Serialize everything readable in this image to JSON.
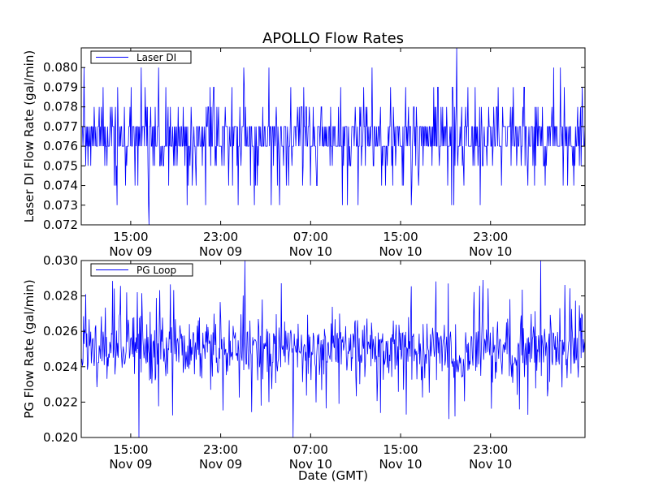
{
  "title": "APOLLO Flow Rates",
  "xlabel": "Date (GMT)",
  "colors": {
    "series": "#0000ff",
    "axes": "#000000",
    "background": "#ffffff"
  },
  "chart_data": [
    {
      "type": "line",
      "ylabel": "Laser DI Flow Rate (gal/min)",
      "legend": {
        "label": "Laser DI",
        "placement": "top-left"
      },
      "ylim": [
        0.072,
        0.081
      ],
      "yticks": [
        0.072,
        0.073,
        0.074,
        0.075,
        0.076,
        0.077,
        0.078,
        0.079,
        0.08
      ],
      "ytick_labels": [
        "0.072",
        "0.073",
        "0.074",
        "0.075",
        "0.076",
        "0.077",
        "0.078",
        "0.079",
        "0.080"
      ],
      "xlim_hours": [
        10.6,
        55.4
      ],
      "xticks_hours": [
        15,
        23,
        31,
        39,
        47
      ],
      "xtick_labels": [
        [
          "15:00",
          "Nov 09"
        ],
        [
          "23:00",
          "Nov 09"
        ],
        [
          "07:00",
          "Nov 10"
        ],
        [
          "15:00",
          "Nov 10"
        ],
        [
          "23:00",
          "Nov 10"
        ]
      ],
      "typical_band": [
        0.076,
        0.077
      ],
      "occasional_range": [
        0.073,
        0.08
      ],
      "observed_min": 0.072,
      "observed_max": 0.081,
      "series": [
        {
          "name": "Laser DI"
        }
      ]
    },
    {
      "type": "line",
      "ylabel": "PG Flow Rate (gal/min)",
      "legend": {
        "label": "PG Loop",
        "placement": "top-left"
      },
      "ylim": [
        0.02,
        0.03
      ],
      "yticks": [
        0.02,
        0.022,
        0.024,
        0.026,
        0.028,
        0.03
      ],
      "ytick_labels": [
        "0.020",
        "0.022",
        "0.024",
        "0.026",
        "0.028",
        "0.030"
      ],
      "xlim_hours": [
        10.6,
        55.4
      ],
      "xticks_hours": [
        15,
        23,
        31,
        39,
        47
      ],
      "xtick_labels": [
        [
          "15:00",
          "Nov 09"
        ],
        [
          "23:00",
          "Nov 09"
        ],
        [
          "07:00",
          "Nov 10"
        ],
        [
          "15:00",
          "Nov 10"
        ],
        [
          "23:00",
          "Nov 10"
        ]
      ],
      "typical_band": [
        0.024,
        0.026
      ],
      "occasional_range": [
        0.021,
        0.029
      ],
      "observed_min": 0.02,
      "observed_max": 0.03,
      "series": [
        {
          "name": "PG Loop"
        }
      ]
    }
  ]
}
